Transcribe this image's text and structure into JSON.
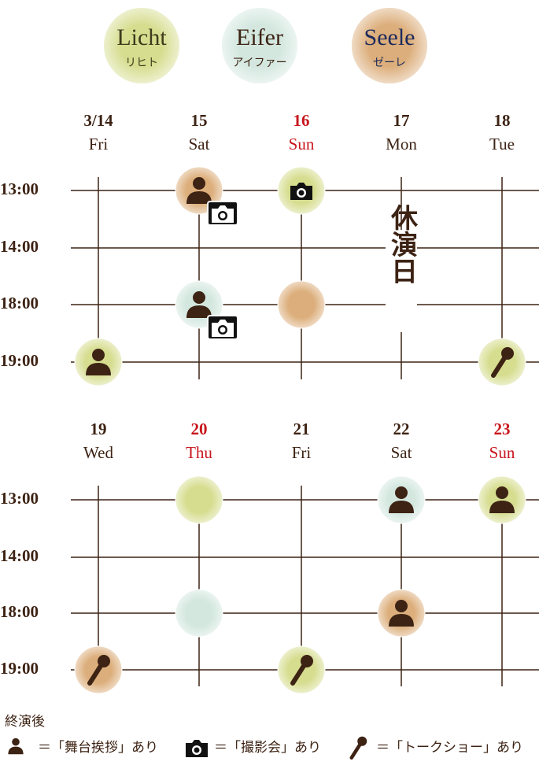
{
  "teams": [
    {
      "name": "Licht",
      "kana": "リヒト",
      "color": "#d6dd8f",
      "text_color": "#3e3a1c"
    },
    {
      "name": "Eifer",
      "kana": "アイファー",
      "color": "#d3e7df",
      "text_color": "#3d2314"
    },
    {
      "name": "Seele",
      "kana": "ゼーレ",
      "color": "#dcae7b",
      "text_color": "#1c2a5c"
    }
  ],
  "weeks": [
    {
      "times": [
        "13:00",
        "14:00",
        "18:00",
        "19:00"
      ],
      "closed_day": {
        "label": "休演日"
      },
      "days": [
        {
          "date": "3/14",
          "weekday": "Fri",
          "color": "#3d2314",
          "slots": [
            null,
            null,
            null,
            {
              "color": "#d6dd8f",
              "icons": [
                "person"
              ]
            }
          ]
        },
        {
          "date": "15",
          "weekday": "Sat",
          "color": "#3d2314",
          "slots": [
            {
              "color": "#dcae7b",
              "icons": [
                "person",
                "camera"
              ]
            },
            null,
            {
              "color": "#d3e7df",
              "icons": [
                "person",
                "camera"
              ]
            },
            null
          ]
        },
        {
          "date": "16",
          "weekday": "Sun",
          "color": "#c8161d",
          "slots": [
            {
              "color": "#d6dd8f",
              "icons": [
                "camera"
              ]
            },
            null,
            {
              "color": "#dcae7b",
              "icons": []
            },
            null
          ]
        },
        {
          "date": "17",
          "weekday": "Mon",
          "color": "#3d2314",
          "closed": true,
          "slots": [
            null,
            null,
            null,
            null
          ]
        },
        {
          "date": "18",
          "weekday": "Tue",
          "color": "#3d2314",
          "slots": [
            null,
            null,
            null,
            {
              "color": "#d6dd8f",
              "icons": [
                "mic"
              ]
            }
          ]
        }
      ]
    },
    {
      "times": [
        "13:00",
        "14:00",
        "18:00",
        "19:00"
      ],
      "days": [
        {
          "date": "19",
          "weekday": "Wed",
          "color": "#3d2314",
          "slots": [
            null,
            null,
            null,
            {
              "color": "#dcae7b",
              "icons": [
                "mic"
              ]
            }
          ]
        },
        {
          "date": "20",
          "weekday": "Thu",
          "color": "#c8161d",
          "slots": [
            {
              "color": "#d6dd8f",
              "icons": []
            },
            null,
            {
              "color": "#d3e7df",
              "icons": []
            },
            null
          ]
        },
        {
          "date": "21",
          "weekday": "Fri",
          "color": "#3d2314",
          "slots": [
            null,
            null,
            null,
            {
              "color": "#d6dd8f",
              "icons": [
                "mic"
              ]
            }
          ]
        },
        {
          "date": "22",
          "weekday": "Sat",
          "color": "#3d2314",
          "slots": [
            {
              "color": "#d3e7df",
              "icons": [
                "person"
              ]
            },
            null,
            {
              "color": "#dcae7b",
              "icons": [
                "person"
              ]
            },
            null
          ]
        },
        {
          "date": "23",
          "weekday": "Sun",
          "color": "#c8161d",
          "slots": [
            {
              "color": "#d6dd8f",
              "icons": [
                "person"
              ]
            },
            null,
            null,
            null
          ]
        }
      ]
    }
  ],
  "legend": {
    "title": "終演後",
    "items": [
      {
        "icon": "person",
        "label": "＝「舞台挨拶」あり"
      },
      {
        "icon": "camera",
        "label": "＝「撮影会」あり"
      },
      {
        "icon": "mic",
        "label": "＝「トークショー」あり"
      }
    ]
  }
}
